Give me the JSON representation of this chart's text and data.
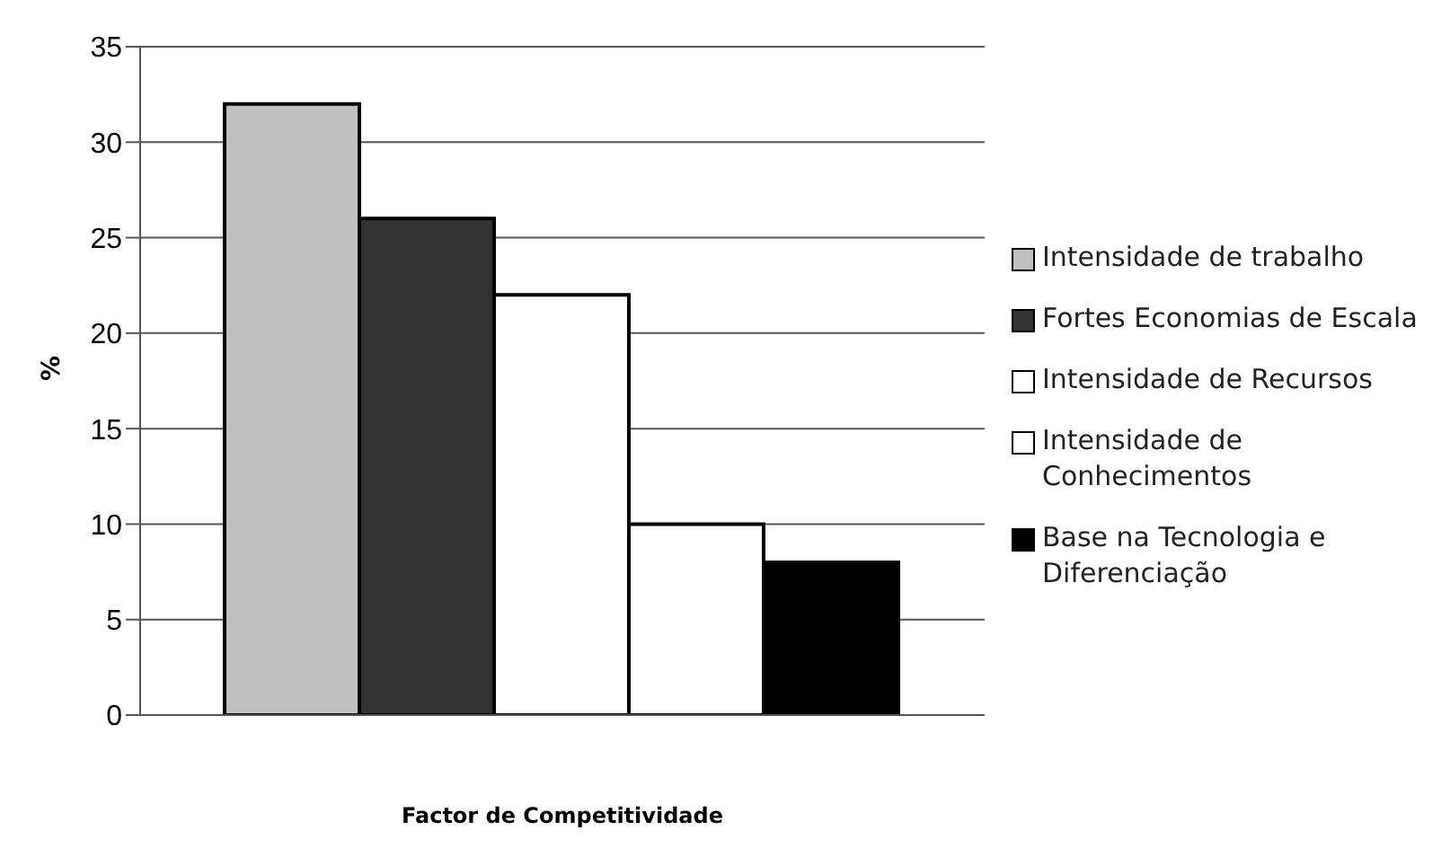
{
  "chart_data": {
    "type": "bar",
    "xlabel": "Factor de Competitividade",
    "ylabel": "%",
    "categories": [
      null
    ],
    "series": [
      {
        "name": "Intensidade de trabalho",
        "color": "#c0c0c0",
        "values": [
          32
        ]
      },
      {
        "name": "Fortes Economias de Escala",
        "color": "#333333",
        "values": [
          26
        ]
      },
      {
        "name": "Intensidade de Recursos",
        "color": "#ffffff",
        "values": [
          22
        ]
      },
      {
        "name": "Intensidade de Conhecimentos",
        "color": "#ffffff",
        "values": [
          10
        ]
      },
      {
        "name": "Base na Tecnologia e Diferenciação",
        "color": "#000000",
        "values": [
          8
        ]
      }
    ],
    "ylim": [
      0,
      35
    ],
    "yticks": [
      0,
      5,
      10,
      15,
      20,
      25,
      30,
      35
    ],
    "grid": "y",
    "legend": "right"
  }
}
